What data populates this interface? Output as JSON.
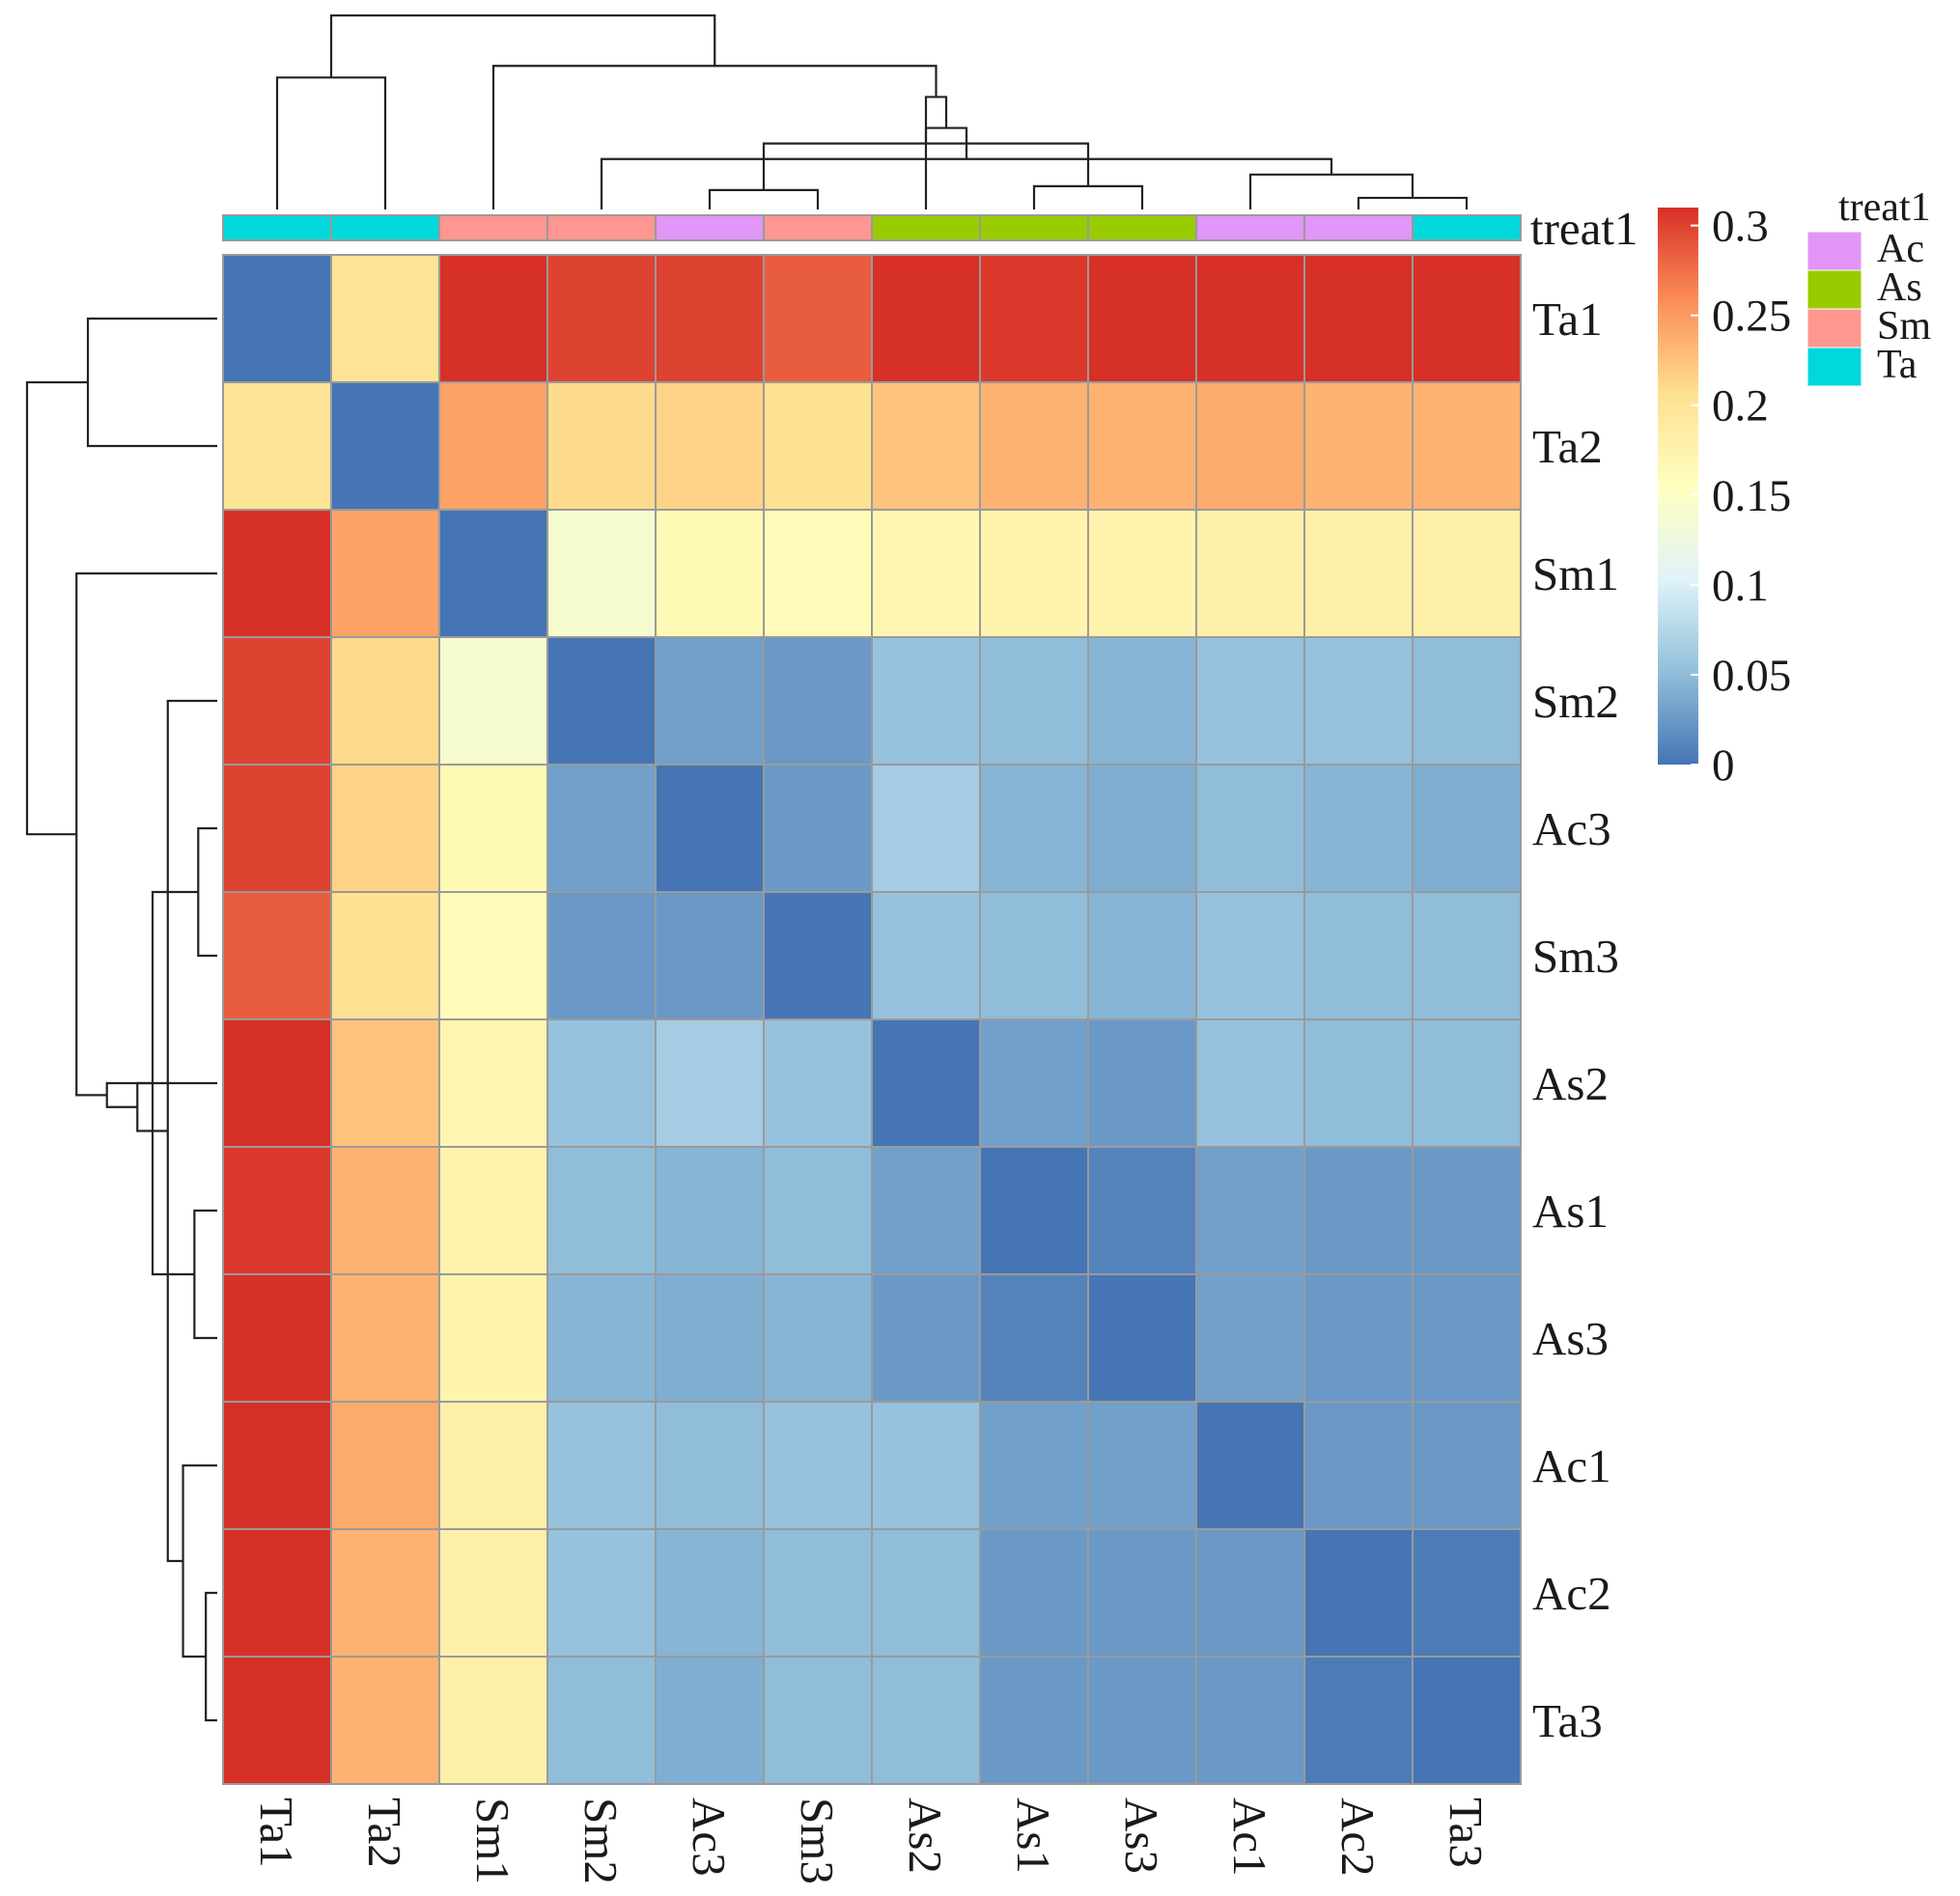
{
  "chart_data": {
    "type": "heatmap",
    "title": "",
    "row_labels": [
      "Ta1",
      "Ta2",
      "Sm1",
      "Sm2",
      "Ac3",
      "Sm3",
      "As2",
      "As1",
      "As3",
      "Ac1",
      "Ac2",
      "Ta3"
    ],
    "col_labels": [
      "Ta1",
      "Ta2",
      "Sm1",
      "Sm2",
      "Ac3",
      "Sm3",
      "As2",
      "As1",
      "As3",
      "Ac1",
      "Ac2",
      "Ta3"
    ],
    "values": [
      [
        0.0,
        0.2,
        0.31,
        0.3,
        0.3,
        0.285,
        0.31,
        0.305,
        0.31,
        0.31,
        0.31,
        0.31
      ],
      [
        0.2,
        0.0,
        0.245,
        0.21,
        0.215,
        0.205,
        0.225,
        0.235,
        0.235,
        0.24,
        0.235,
        0.235
      ],
      [
        0.31,
        0.245,
        0.0,
        0.14,
        0.165,
        0.16,
        0.17,
        0.175,
        0.175,
        0.18,
        0.18,
        0.18
      ],
      [
        0.3,
        0.21,
        0.14,
        0.0,
        0.03,
        0.025,
        0.055,
        0.05,
        0.045,
        0.055,
        0.055,
        0.05
      ],
      [
        0.3,
        0.215,
        0.165,
        0.03,
        0.0,
        0.025,
        0.065,
        0.045,
        0.04,
        0.05,
        0.045,
        0.04
      ],
      [
        0.285,
        0.205,
        0.16,
        0.025,
        0.025,
        0.0,
        0.055,
        0.05,
        0.045,
        0.055,
        0.05,
        0.05
      ],
      [
        0.31,
        0.225,
        0.17,
        0.055,
        0.065,
        0.055,
        0.0,
        0.03,
        0.025,
        0.055,
        0.05,
        0.05
      ],
      [
        0.305,
        0.235,
        0.175,
        0.05,
        0.045,
        0.05,
        0.03,
        0.0,
        0.01,
        0.03,
        0.025,
        0.025
      ],
      [
        0.31,
        0.235,
        0.175,
        0.045,
        0.04,
        0.045,
        0.025,
        0.01,
        0.0,
        0.03,
        0.025,
        0.025
      ],
      [
        0.31,
        0.24,
        0.18,
        0.055,
        0.05,
        0.055,
        0.055,
        0.03,
        0.03,
        0.0,
        0.025,
        0.025
      ],
      [
        0.31,
        0.235,
        0.18,
        0.055,
        0.045,
        0.05,
        0.05,
        0.025,
        0.025,
        0.025,
        0.0,
        0.005
      ],
      [
        0.31,
        0.235,
        0.18,
        0.05,
        0.04,
        0.05,
        0.05,
        0.025,
        0.025,
        0.025,
        0.005,
        0.0
      ]
    ],
    "annotation": {
      "name": "treat1",
      "groups": [
        "Ta",
        "Ta",
        "Sm",
        "Sm",
        "Ac",
        "Sm",
        "As",
        "As",
        "As",
        "Ac",
        "Ac",
        "Ta"
      ]
    },
    "colorbar": {
      "ticks": [
        "0.3",
        "0.25",
        "0.2",
        "0.15",
        "0.1",
        "0.05",
        "0"
      ],
      "tick_values": [
        0.3,
        0.25,
        0.2,
        0.15,
        0.1,
        0.05,
        0
      ],
      "range": [
        0,
        0.31
      ],
      "colors": [
        "#4575b4",
        "#91bfdb",
        "#e0f3f8",
        "#ffffbf",
        "#fee090",
        "#fc8d59",
        "#d73027"
      ]
    },
    "legend": {
      "title": "treat1",
      "position": "right",
      "items": [
        {
          "label": "Ac",
          "color": "#e196f8"
        },
        {
          "label": "As",
          "color": "#99cc00"
        },
        {
          "label": "Sm",
          "color": "#ff9690"
        },
        {
          "label": "Ta",
          "color": "#00d8dc"
        }
      ]
    },
    "dendrogram": {
      "shown": [
        "top",
        "left"
      ],
      "merges": [
        {
          "a": 10,
          "b": 11,
          "h": 0.06
        },
        {
          "a": 7,
          "b": 8,
          "h": 0.12
        },
        {
          "a": 9,
          "b": 12,
          "h": 0.18
        },
        {
          "a": 4,
          "b": 5,
          "h": 0.1
        },
        {
          "a": 3,
          "b": 14,
          "h": 0.26
        },
        {
          "a": 13,
          "b": 15,
          "h": 0.34
        },
        {
          "a": 6,
          "b": 16,
          "h": 0.42
        },
        {
          "a": 17,
          "b": 18,
          "h": 0.58
        },
        {
          "a": 2,
          "b": 19,
          "h": 0.74
        },
        {
          "a": 0,
          "b": 1,
          "h": 0.68
        },
        {
          "a": 21,
          "b": 20,
          "h": 1.0
        }
      ]
    }
  }
}
